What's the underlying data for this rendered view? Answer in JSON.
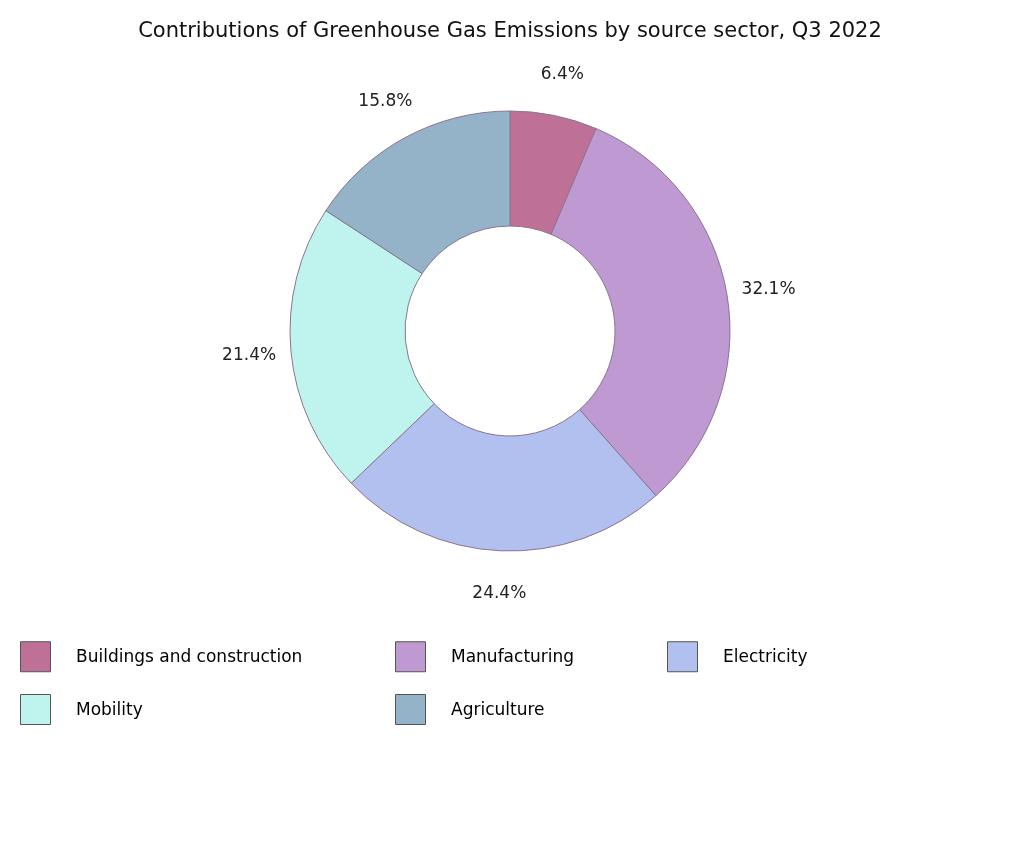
{
  "chart_data": {
    "type": "donut",
    "title": "Contributions of Greenhouse Gas Emissions by source sector, Q3 2022",
    "categories": [
      "Buildings and construction",
      "Manufacturing",
      "Electricity",
      "Mobility",
      "Agriculture"
    ],
    "values": [
      6.4,
      32.1,
      24.4,
      21.4,
      15.8
    ],
    "value_labels": [
      "6.4%",
      "32.1%",
      "24.4%",
      "21.4%",
      "15.8%"
    ],
    "colors": [
      "#bf7096",
      "#bf99d1",
      "#b1c0ee",
      "#bff4ee",
      "#94b2c8"
    ],
    "legend": "bottom"
  }
}
